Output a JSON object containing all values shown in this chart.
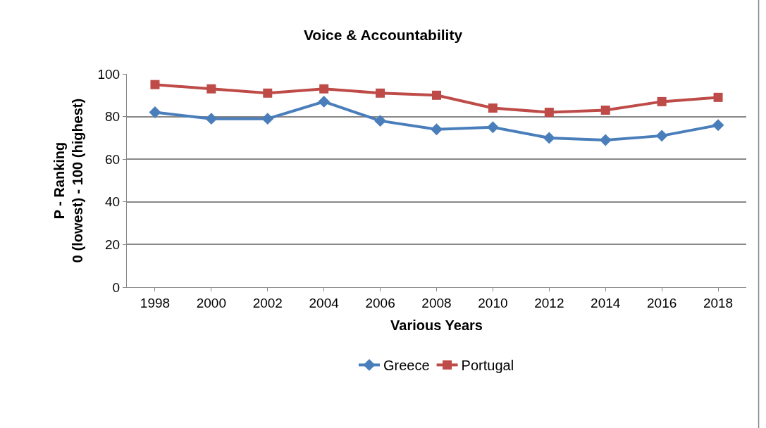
{
  "chart_data": {
    "type": "line",
    "title": "Voice & Accountability",
    "xlabel": "Various Years",
    "ylabel": "P - Ranking\n0 (lowest) - 100 (highest)",
    "categories": [
      "1998",
      "2000",
      "2002",
      "2004",
      "2006",
      "2008",
      "2010",
      "2012",
      "2014",
      "2016",
      "2018"
    ],
    "series": [
      {
        "name": "Greece",
        "color": "#4a7ebb",
        "marker": "diamond",
        "values": [
          82,
          79,
          79,
          87,
          78,
          74,
          75,
          70,
          69,
          71,
          76
        ]
      },
      {
        "name": "Portugal",
        "color": "#be4b48",
        "marker": "square",
        "values": [
          95,
          93,
          91,
          93,
          91,
          90,
          84,
          82,
          83,
          87,
          89
        ]
      }
    ],
    "ylim": [
      0,
      100
    ],
    "yticks": [
      0,
      20,
      40,
      60,
      80,
      100
    ],
    "grid": "y",
    "legend": "bottom",
    "line_style": "solid"
  }
}
